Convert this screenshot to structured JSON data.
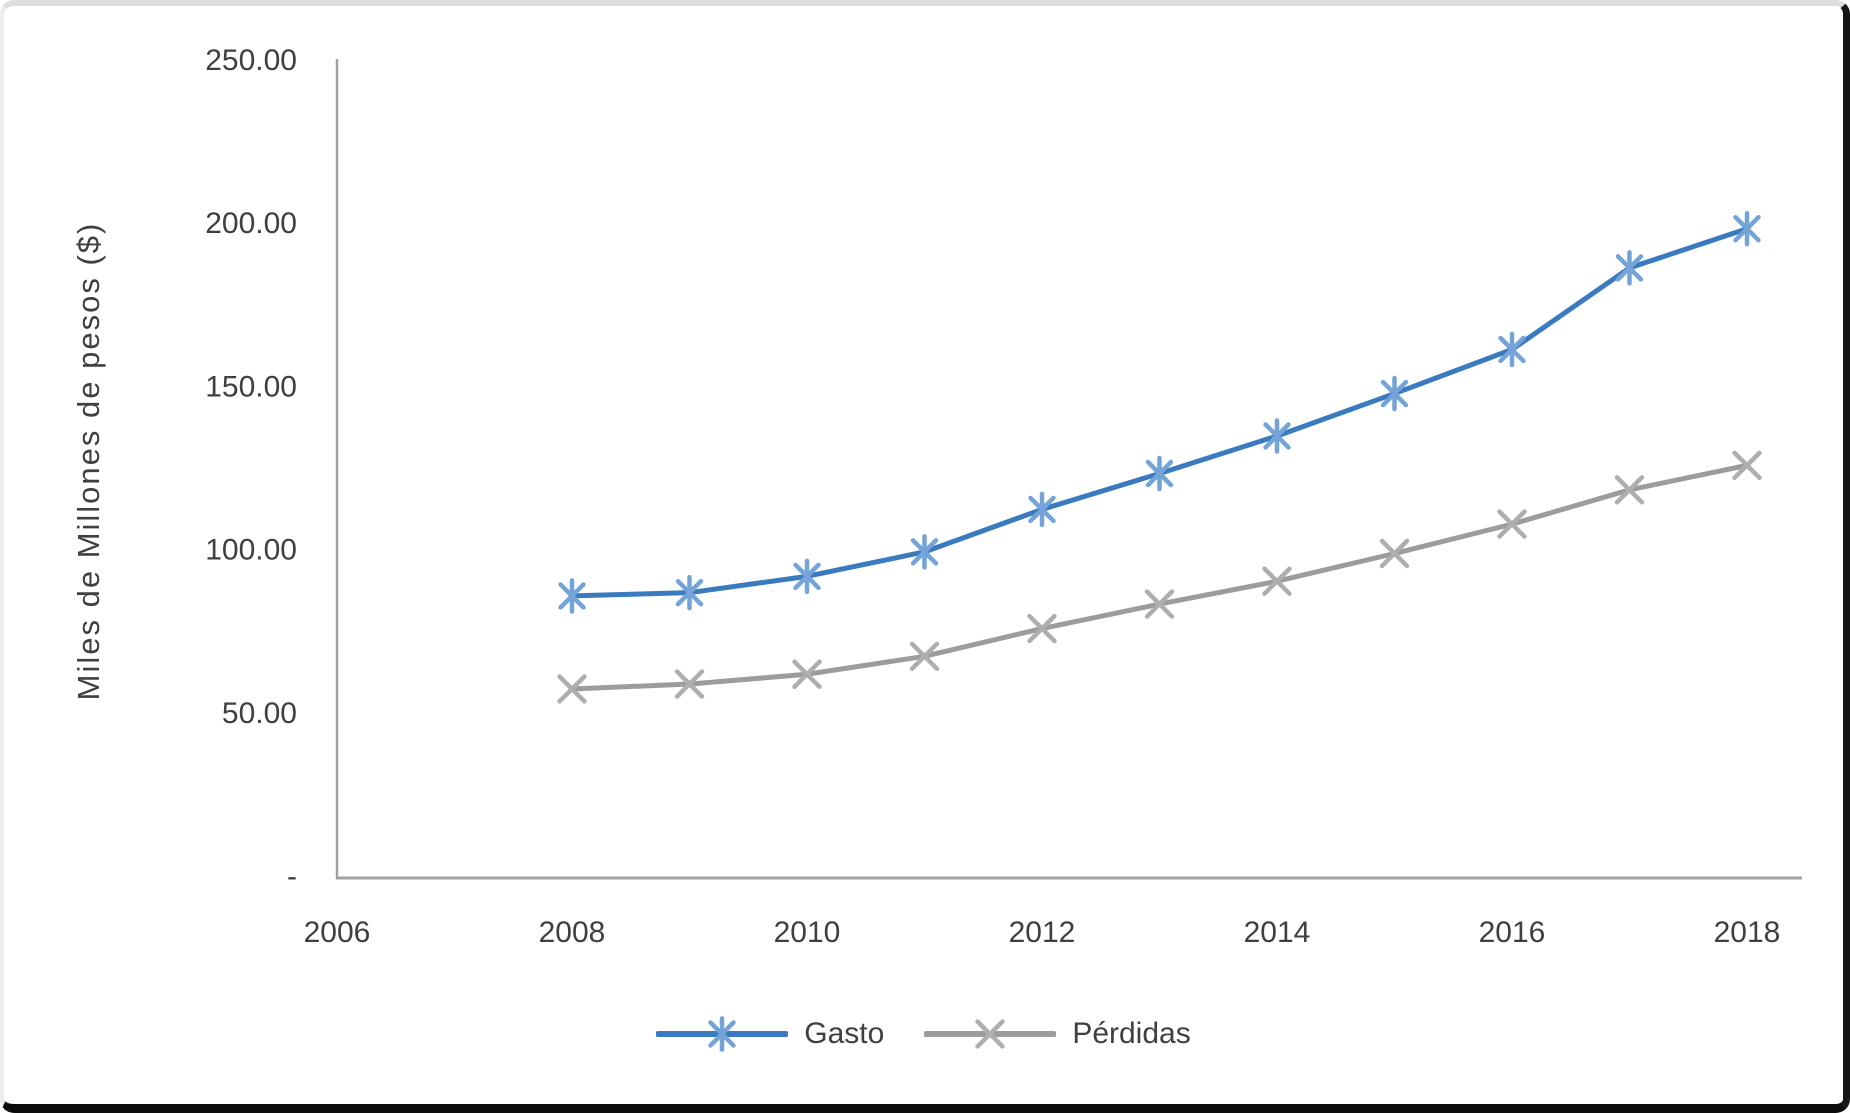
{
  "chart_data": {
    "type": "line",
    "title": "",
    "xlabel": "",
    "ylabel": "Miles de Millones de pesos ($)",
    "x": [
      2008,
      2009,
      2010,
      2011,
      2012,
      2013,
      2014,
      2015,
      2016,
      2017,
      2018
    ],
    "series": [
      {
        "name": "Gasto",
        "marker": "asterisk",
        "line_color": "#3a7bbf",
        "marker_color": "#74a3d8",
        "values": [
          85.5,
          86.5,
          91.5,
          99,
          112,
          123,
          134.5,
          147.5,
          161,
          186,
          198
        ]
      },
      {
        "name": "Pérdidas",
        "marker": "x",
        "line_color": "#9c9c9c",
        "marker_color": "#aeaeae",
        "values": [
          57,
          58.5,
          61.5,
          67,
          75.5,
          83,
          90,
          98.5,
          107.5,
          118,
          125.5
        ]
      }
    ],
    "x_ticks": [
      2006,
      2008,
      2010,
      2012,
      2014,
      2016,
      2018
    ],
    "y_tick_values": [
      0,
      50,
      100,
      150,
      200,
      250
    ],
    "y_tick_labels": [
      "-",
      "50.00",
      "100.00",
      "150.00",
      "200.00",
      "250.00"
    ],
    "ylim": [
      0,
      250
    ],
    "xlim": [
      2006,
      2018.5
    ],
    "grid": false,
    "legend_position": "bottom",
    "axis_color": "#a2a2a2",
    "text_color": "#3f3f3f"
  }
}
